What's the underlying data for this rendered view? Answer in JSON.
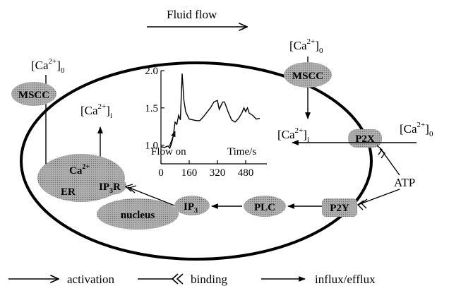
{
  "header": {
    "flow_label": "Fluid flow"
  },
  "external_ca": "[Ca",
  "external_ca_sup": "2+",
  "external_ca_sub": "0",
  "internal_ca": "[Ca",
  "internal_ca_sup": "2+",
  "internal_ca_sub": "i",
  "ca_ion": "Ca",
  "ca_ion_sup": "2+",
  "nodes": {
    "mscc_left": "MSCC",
    "mscc_right": "MSCC",
    "p2x": "P2X",
    "p2y": "P2Y",
    "plc": "PLC",
    "ip3": "IP",
    "ip3_sub": "3",
    "ip3r": "IP",
    "ip3r_sub": "3",
    "ip3r_suffix": "R",
    "er": "ER",
    "nucleus": "nucleus",
    "atp": "ATP"
  },
  "inset": {
    "flow_on": "Flow on",
    "time_label": "Time/s",
    "yticks": [
      "2.0",
      "1.5",
      "1.0"
    ],
    "xticks": [
      "0",
      "160",
      "320",
      "480"
    ]
  },
  "chart_data": {
    "type": "line",
    "xlabel": "Time/s",
    "ylabel": "",
    "xlim": [
      0,
      600
    ],
    "ylim": [
      0.75,
      2.0
    ],
    "annotation": "Flow on",
    "x": [
      0,
      20,
      40,
      50,
      60,
      70,
      80,
      90,
      100,
      110,
      120,
      130,
      140,
      150,
      160,
      180,
      200,
      220,
      240,
      260,
      280,
      300,
      320,
      330,
      340,
      350,
      360,
      380,
      400,
      420,
      440,
      460,
      470,
      480,
      490,
      500,
      520,
      540,
      560
    ],
    "values": [
      0.98,
      0.97,
      0.99,
      0.96,
      1.02,
      1.13,
      1.31,
      1.28,
      1.4,
      1.34,
      1.96,
      1.6,
      1.45,
      1.4,
      1.35,
      1.34,
      1.33,
      1.33,
      1.38,
      1.44,
      1.5,
      1.58,
      1.6,
      1.48,
      1.53,
      1.58,
      1.58,
      1.45,
      1.34,
      1.31,
      1.36,
      1.44,
      1.5,
      1.45,
      1.5,
      1.43,
      1.4,
      1.35,
      1.36
    ]
  },
  "legend": {
    "activation": "activation",
    "binding": "binding",
    "influx": "influx/efflux"
  }
}
